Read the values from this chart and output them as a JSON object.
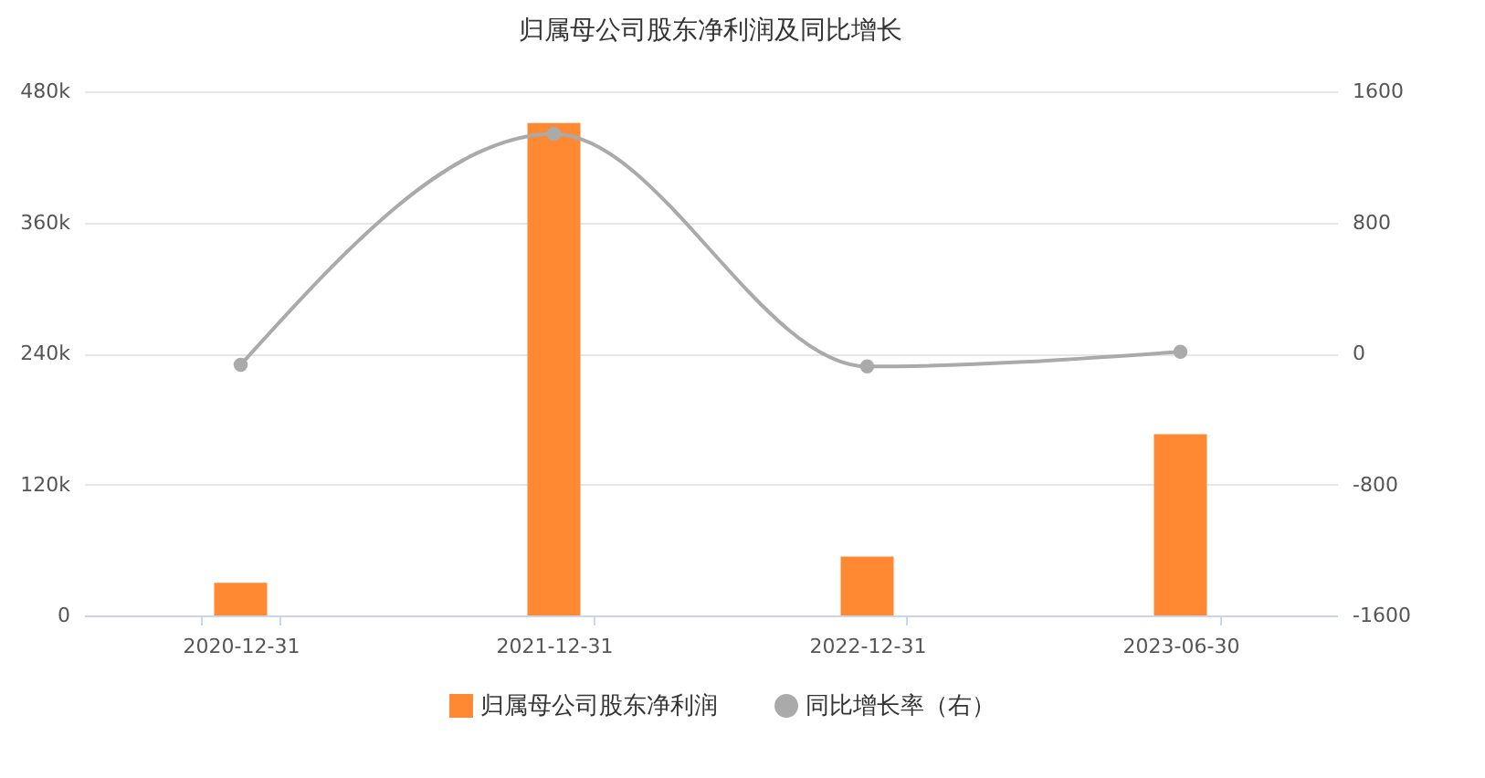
{
  "chart_data": {
    "type": "bar",
    "title": "归属母公司股东净利润及同比增长",
    "categories": [
      "2020-12-31",
      "2021-12-31",
      "2022-12-31",
      "2023-06-30"
    ],
    "series": [
      {
        "name": "归属母公司股东净利润",
        "color": "#ff8833",
        "values": [
          30000,
          451000,
          54000,
          166000
        ]
      },
      {
        "name": "同比增长率（右）",
        "type": "line",
        "axis": "y2",
        "color": "#aaaaaa",
        "values": [
          -70,
          1340,
          -80,
          10
        ]
      }
    ],
    "ylim": [
      0,
      480000
    ],
    "yticks": [
      0,
      {
        "value": 120000,
        "label": "120k"
      },
      {
        "value": 240000,
        "label": "240k"
      },
      {
        "value": 360000,
        "label": "360k"
      },
      {
        "value": 480000,
        "label": "480k"
      }
    ],
    "y2lim": [
      -1600,
      1600
    ],
    "y2ticks": [
      {
        "value": -1600,
        "label": "-1600"
      },
      {
        "value": -800,
        "label": "-800"
      },
      0,
      {
        "value": 800,
        "label": "800"
      },
      {
        "value": 1600,
        "label": "1600"
      }
    ],
    "grid": "y",
    "legend": "bottom",
    "marker": "circle"
  }
}
